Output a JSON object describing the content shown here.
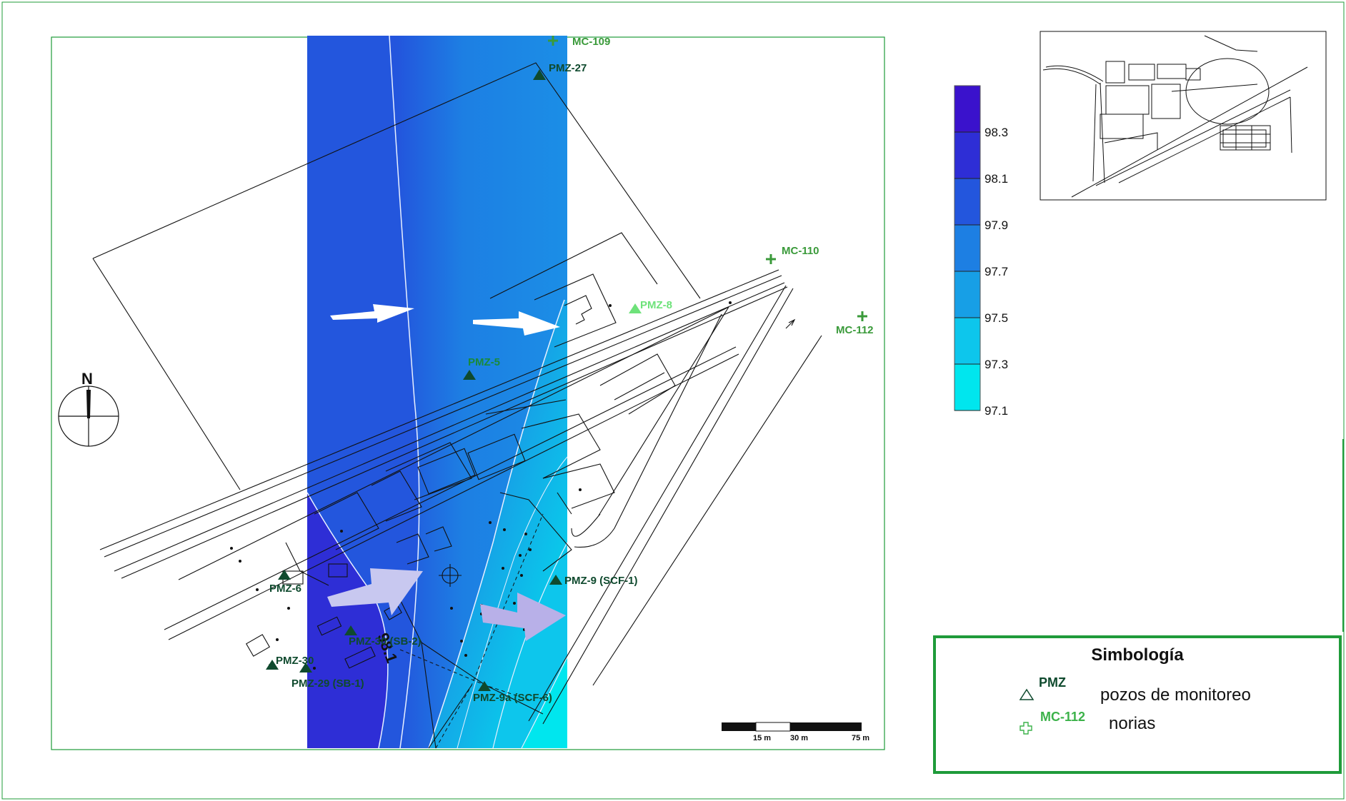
{
  "north_label": "N",
  "colorbar": {
    "ticks": [
      "98.3",
      "98.1",
      "97.9",
      "97.7",
      "97.5",
      "97.3",
      "97.1"
    ],
    "colors": [
      "#3a12cc",
      "#2e2ed6",
      "#2356dd",
      "#1d7fe3",
      "#179fe6",
      "#0dc6ec",
      "#00e6ee"
    ]
  },
  "contour_label": "98.1",
  "scale_bar": {
    "labels": [
      "15 m",
      "30 m",
      "75 m"
    ]
  },
  "wells_pmz": [
    {
      "id": "PMZ-27",
      "color": "#0f4a2e"
    },
    {
      "id": "PMZ-5",
      "color": "#0f4a2e"
    },
    {
      "id": "PMZ-8",
      "color": "#6ee27a"
    },
    {
      "id": "PMZ-9 (SCF-1)",
      "color": "#0f4a2e"
    },
    {
      "id": "PMZ-6",
      "color": "#0f4a2e"
    },
    {
      "id": "PMZ-30 (SB-2)",
      "color": "#0f4a2e"
    },
    {
      "id": "PMZ-30",
      "color": "#0f4a2e"
    },
    {
      "id": "PMZ-29 (SB-1)",
      "color": "#0f4a2e"
    },
    {
      "id": "PMZ-9a (SCF-6)",
      "color": "#0f4a2e"
    }
  ],
  "norias": [
    {
      "id": "MC-109"
    },
    {
      "id": "MC-110"
    },
    {
      "id": "MC-112"
    }
  ],
  "legend": {
    "title": "Simbología",
    "pmz_code": "PMZ",
    "pmz_text": "pozos de monitoreo",
    "noria_code": "MC-112",
    "noria_text": "norias"
  },
  "colors": {
    "frame_green": "#1f9b3a",
    "pmz_dark": "#0f4a2e",
    "noria_green": "#3a9a3a",
    "flow_arrow": "#ffffff"
  }
}
